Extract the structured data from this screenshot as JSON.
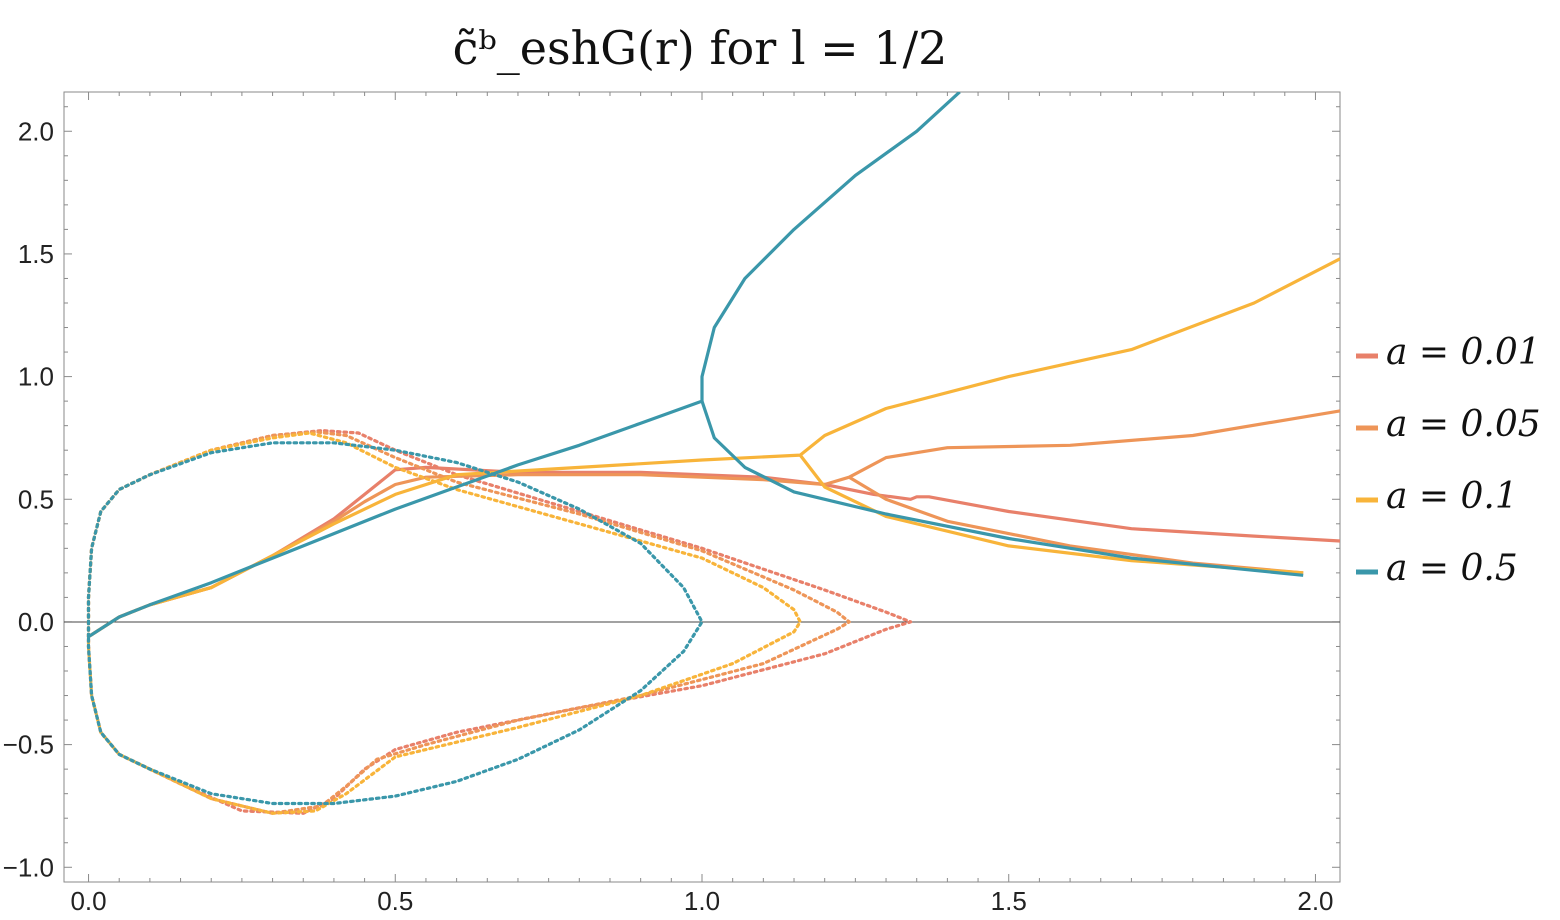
{
  "chart_data": {
    "type": "line",
    "title": "c̃ᵇ_eshG(r)    for    l = 1/2",
    "xlabel": "",
    "ylabel": "",
    "xlim": [
      -0.04,
      2.04
    ],
    "ylim": [
      -1.06,
      2.16
    ],
    "grid": false,
    "x_ticks": [
      "0.0",
      "0.5",
      "1.0",
      "1.5",
      "2.0"
    ],
    "y_ticks": [
      "-1.0",
      "-0.5",
      "0.0",
      "0.5",
      "1.0",
      "1.5",
      "2.0"
    ],
    "legend_position": "right",
    "series": [
      {
        "name": "a = 0.01",
        "color": "#E8806A",
        "solid": [
          [
            0,
            -0.06
          ],
          [
            0.05,
            0.02
          ],
          [
            0.1,
            0.07
          ],
          [
            0.2,
            0.14
          ],
          [
            0.3,
            0.27
          ],
          [
            0.4,
            0.42
          ],
          [
            0.45,
            0.52
          ],
          [
            0.5,
            0.62
          ],
          [
            0.55,
            0.63
          ],
          [
            0.7,
            0.61
          ],
          [
            0.9,
            0.61
          ],
          [
            1.1,
            0.59
          ],
          [
            1.2,
            0.56
          ],
          [
            1.28,
            0.52
          ],
          [
            1.34,
            0.5
          ],
          [
            1.35,
            0.51
          ],
          [
            1.37,
            0.51
          ],
          [
            1.5,
            0.45
          ],
          [
            1.7,
            0.38
          ],
          [
            1.9,
            0.35
          ],
          [
            2.04,
            0.33
          ]
        ],
        "dotted": [
          [
            0,
            -0.06
          ],
          [
            0,
            0.1
          ],
          [
            0.005,
            0.3
          ],
          [
            0.02,
            0.45
          ],
          [
            0.05,
            0.54
          ],
          [
            0.1,
            0.6
          ],
          [
            0.2,
            0.7
          ],
          [
            0.3,
            0.76
          ],
          [
            0.38,
            0.78
          ],
          [
            0.44,
            0.77
          ],
          [
            0.5,
            0.7
          ],
          [
            0.6,
            0.6
          ],
          [
            0.8,
            0.45
          ],
          [
            1.0,
            0.3
          ],
          [
            1.2,
            0.13
          ],
          [
            1.3,
            0.04
          ],
          [
            1.34,
            0
          ],
          [
            1.3,
            -0.03
          ],
          [
            1.2,
            -0.13
          ],
          [
            1.0,
            -0.26
          ],
          [
            0.8,
            -0.35
          ],
          [
            0.6,
            -0.45
          ],
          [
            0.5,
            -0.52
          ],
          [
            0.45,
            -0.6
          ],
          [
            0.4,
            -0.72
          ],
          [
            0.35,
            -0.78
          ],
          [
            0.25,
            -0.77
          ],
          [
            0.15,
            -0.66
          ],
          [
            0.05,
            -0.54
          ],
          [
            0.02,
            -0.45
          ],
          [
            0.005,
            -0.3
          ],
          [
            0,
            -0.1
          ],
          [
            0,
            -0.06
          ]
        ]
      },
      {
        "name": "a = 0.05",
        "color": "#EE9558",
        "solid": [
          [
            0,
            -0.06
          ],
          [
            0.05,
            0.02
          ],
          [
            0.1,
            0.07
          ],
          [
            0.2,
            0.14
          ],
          [
            0.3,
            0.27
          ],
          [
            0.4,
            0.41
          ],
          [
            0.45,
            0.49
          ],
          [
            0.5,
            0.56
          ],
          [
            0.55,
            0.59
          ],
          [
            0.7,
            0.6
          ],
          [
            0.9,
            0.6
          ],
          [
            1.1,
            0.58
          ],
          [
            1.2,
            0.56
          ],
          [
            1.24,
            0.59
          ],
          [
            1.3,
            0.67
          ],
          [
            1.4,
            0.71
          ],
          [
            1.6,
            0.72
          ],
          [
            1.8,
            0.76
          ],
          [
            2.04,
            0.86
          ]
        ],
        "branch": [
          [
            1.24,
            0.59
          ],
          [
            1.3,
            0.5
          ],
          [
            1.4,
            0.41
          ],
          [
            1.6,
            0.31
          ],
          [
            1.8,
            0.24
          ],
          [
            1.98,
            0.2
          ]
        ],
        "dotted": [
          [
            0,
            -0.06
          ],
          [
            0,
            0.1
          ],
          [
            0.005,
            0.3
          ],
          [
            0.02,
            0.45
          ],
          [
            0.05,
            0.54
          ],
          [
            0.1,
            0.6
          ],
          [
            0.2,
            0.7
          ],
          [
            0.3,
            0.76
          ],
          [
            0.37,
            0.775
          ],
          [
            0.42,
            0.76
          ],
          [
            0.5,
            0.67
          ],
          [
            0.6,
            0.57
          ],
          [
            0.8,
            0.44
          ],
          [
            1.0,
            0.29
          ],
          [
            1.15,
            0.13
          ],
          [
            1.22,
            0.04
          ],
          [
            1.24,
            0
          ],
          [
            1.22,
            -0.03
          ],
          [
            1.1,
            -0.17
          ],
          [
            0.9,
            -0.3
          ],
          [
            0.7,
            -0.4
          ],
          [
            0.55,
            -0.5
          ],
          [
            0.47,
            -0.56
          ],
          [
            0.42,
            -0.67
          ],
          [
            0.38,
            -0.75
          ],
          [
            0.3,
            -0.78
          ],
          [
            0.2,
            -0.72
          ],
          [
            0.1,
            -0.6
          ],
          [
            0.05,
            -0.54
          ],
          [
            0.02,
            -0.45
          ],
          [
            0.005,
            -0.3
          ],
          [
            0,
            -0.1
          ],
          [
            0,
            -0.06
          ]
        ]
      },
      {
        "name": "a = 0.1",
        "color": "#F8B43A",
        "solid": [
          [
            0,
            -0.06
          ],
          [
            0.05,
            0.02
          ],
          [
            0.1,
            0.07
          ],
          [
            0.2,
            0.14
          ],
          [
            0.3,
            0.27
          ],
          [
            0.4,
            0.4
          ],
          [
            0.5,
            0.52
          ],
          [
            0.6,
            0.6
          ],
          [
            0.8,
            0.63
          ],
          [
            1.0,
            0.66
          ],
          [
            1.16,
            0.68
          ],
          [
            1.2,
            0.76
          ],
          [
            1.3,
            0.87
          ],
          [
            1.5,
            1.0
          ],
          [
            1.7,
            1.11
          ],
          [
            1.9,
            1.3
          ],
          [
            2.04,
            1.48
          ]
        ],
        "branch": [
          [
            1.16,
            0.68
          ],
          [
            1.2,
            0.55
          ],
          [
            1.3,
            0.43
          ],
          [
            1.5,
            0.31
          ],
          [
            1.7,
            0.25
          ],
          [
            1.98,
            0.2
          ]
        ],
        "dotted": [
          [
            0,
            -0.06
          ],
          [
            0,
            0.1
          ],
          [
            0.005,
            0.3
          ],
          [
            0.02,
            0.45
          ],
          [
            0.05,
            0.54
          ],
          [
            0.1,
            0.6
          ],
          [
            0.2,
            0.7
          ],
          [
            0.3,
            0.75
          ],
          [
            0.36,
            0.77
          ],
          [
            0.42,
            0.73
          ],
          [
            0.5,
            0.63
          ],
          [
            0.6,
            0.54
          ],
          [
            0.8,
            0.4
          ],
          [
            1.0,
            0.26
          ],
          [
            1.1,
            0.14
          ],
          [
            1.15,
            0.05
          ],
          [
            1.16,
            0
          ],
          [
            1.15,
            -0.04
          ],
          [
            1.05,
            -0.17
          ],
          [
            0.9,
            -0.3
          ],
          [
            0.7,
            -0.43
          ],
          [
            0.5,
            -0.55
          ],
          [
            0.42,
            -0.7
          ],
          [
            0.37,
            -0.77
          ],
          [
            0.3,
            -0.78
          ],
          [
            0.2,
            -0.72
          ],
          [
            0.1,
            -0.6
          ],
          [
            0.05,
            -0.54
          ],
          [
            0.02,
            -0.45
          ],
          [
            0.005,
            -0.3
          ],
          [
            0,
            -0.1
          ],
          [
            0,
            -0.06
          ]
        ]
      },
      {
        "name": "a = 0.5",
        "color": "#3A97AA",
        "solid": [
          [
            0,
            -0.06
          ],
          [
            0.05,
            0.02
          ],
          [
            0.1,
            0.07
          ],
          [
            0.2,
            0.16
          ],
          [
            0.3,
            0.26
          ],
          [
            0.4,
            0.36
          ],
          [
            0.5,
            0.46
          ],
          [
            0.6,
            0.55
          ],
          [
            0.7,
            0.64
          ],
          [
            0.8,
            0.72
          ],
          [
            0.9,
            0.81
          ],
          [
            1.0,
            0.9
          ],
          [
            1.0,
            1.0
          ],
          [
            1.02,
            1.2
          ],
          [
            1.07,
            1.4
          ],
          [
            1.15,
            1.6
          ],
          [
            1.25,
            1.82
          ],
          [
            1.35,
            2.0
          ],
          [
            1.42,
            2.16
          ]
        ],
        "branch": [
          [
            1.0,
            0.9
          ],
          [
            1.02,
            0.75
          ],
          [
            1.07,
            0.63
          ],
          [
            1.15,
            0.53
          ],
          [
            1.3,
            0.44
          ],
          [
            1.5,
            0.34
          ],
          [
            1.7,
            0.26
          ],
          [
            1.98,
            0.19
          ]
        ],
        "dotted": [
          [
            0,
            -0.06
          ],
          [
            0,
            0.1
          ],
          [
            0.005,
            0.3
          ],
          [
            0.02,
            0.45
          ],
          [
            0.05,
            0.54
          ],
          [
            0.1,
            0.6
          ],
          [
            0.2,
            0.69
          ],
          [
            0.3,
            0.73
          ],
          [
            0.4,
            0.73
          ],
          [
            0.5,
            0.7
          ],
          [
            0.6,
            0.65
          ],
          [
            0.7,
            0.57
          ],
          [
            0.8,
            0.46
          ],
          [
            0.9,
            0.32
          ],
          [
            0.97,
            0.14
          ],
          [
            1.0,
            0
          ],
          [
            0.97,
            -0.12
          ],
          [
            0.9,
            -0.28
          ],
          [
            0.8,
            -0.44
          ],
          [
            0.7,
            -0.56
          ],
          [
            0.6,
            -0.65
          ],
          [
            0.5,
            -0.71
          ],
          [
            0.4,
            -0.74
          ],
          [
            0.3,
            -0.74
          ],
          [
            0.2,
            -0.7
          ],
          [
            0.1,
            -0.6
          ],
          [
            0.05,
            -0.54
          ],
          [
            0.02,
            -0.45
          ],
          [
            0.005,
            -0.3
          ],
          [
            0,
            -0.1
          ],
          [
            0,
            -0.06
          ]
        ]
      }
    ]
  }
}
